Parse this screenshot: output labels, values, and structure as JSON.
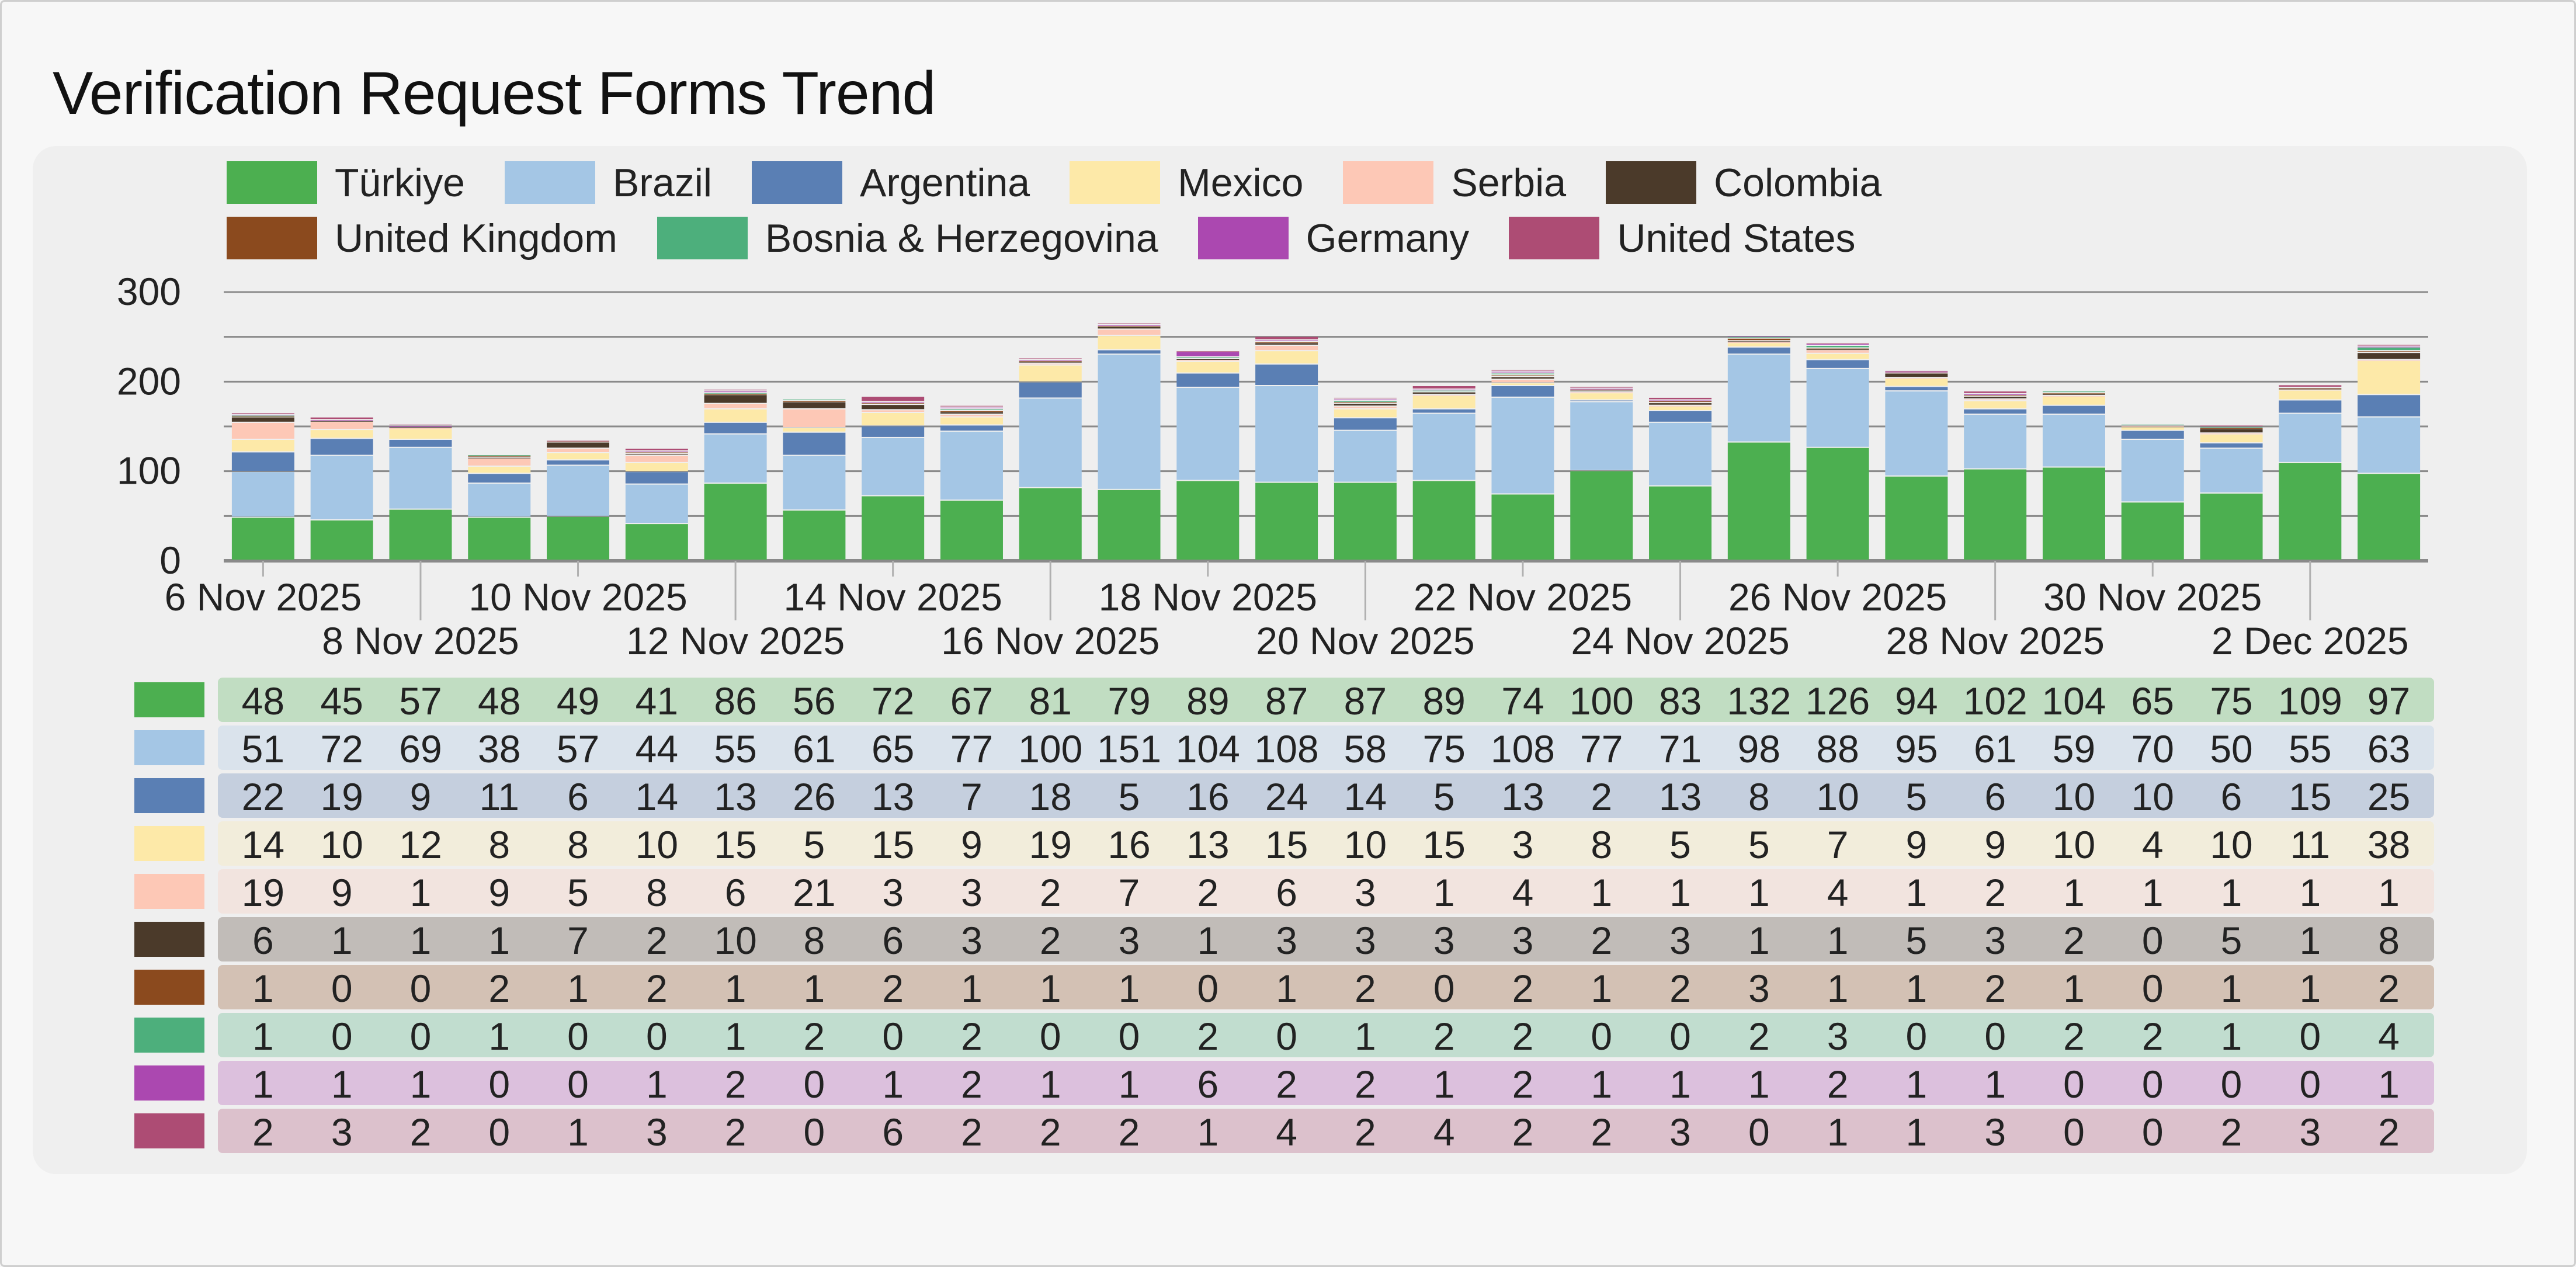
{
  "chart_data": {
    "type": "bar",
    "stacked": true,
    "title": "Verification Request Forms Trend",
    "xlabel": "",
    "ylabel": "",
    "ylim": [
      0,
      300
    ],
    "yticks": [
      0,
      100,
      200,
      300
    ],
    "grid": true,
    "legend_position": "top",
    "categories": [
      "6 Nov 2025",
      "7 Nov 2025",
      "8 Nov 2025",
      "9 Nov 2025",
      "10 Nov 2025",
      "11 Nov 2025",
      "12 Nov 2025",
      "13 Nov 2025",
      "14 Nov 2025",
      "15 Nov 2025",
      "16 Nov 2025",
      "17 Nov 2025",
      "18 Nov 2025",
      "19 Nov 2025",
      "20 Nov 2025",
      "21 Nov 2025",
      "22 Nov 2025",
      "23 Nov 2025",
      "24 Nov 2025",
      "25 Nov 2025",
      "26 Nov 2025",
      "27 Nov 2025",
      "28 Nov 2025",
      "29 Nov 2025",
      "30 Nov 2025",
      "1 Dec 2025",
      "2 Dec 2025",
      "3 Dec 2025"
    ],
    "xtick_labels": [
      "6 Nov 2025",
      "8 Nov 2025",
      "10 Nov 2025",
      "12 Nov 2025",
      "14 Nov 2025",
      "16 Nov 2025",
      "18 Nov 2025",
      "20 Nov 2025",
      "22 Nov 2025",
      "24 Nov 2025",
      "26 Nov 2025",
      "28 Nov 2025",
      "30 Nov 2025",
      "2 Dec 2025"
    ],
    "series": [
      {
        "name": "Türkiye",
        "color": "#4caf50",
        "values": [
          48,
          45,
          57,
          48,
          49,
          41,
          86,
          56,
          72,
          67,
          81,
          79,
          89,
          87,
          87,
          89,
          74,
          100,
          83,
          132,
          126,
          94,
          102,
          104,
          65,
          75,
          109,
          97
        ]
      },
      {
        "name": "Brazil",
        "color": "#a4c6e5",
        "values": [
          51,
          72,
          69,
          38,
          57,
          44,
          55,
          61,
          65,
          77,
          100,
          151,
          104,
          108,
          58,
          75,
          108,
          77,
          71,
          98,
          88,
          95,
          61,
          59,
          70,
          50,
          55,
          63
        ]
      },
      {
        "name": "Argentina",
        "color": "#5a7fb4",
        "values": [
          22,
          19,
          9,
          11,
          6,
          14,
          13,
          26,
          13,
          7,
          18,
          5,
          16,
          24,
          14,
          5,
          13,
          2,
          13,
          8,
          10,
          5,
          6,
          10,
          10,
          6,
          15,
          25
        ]
      },
      {
        "name": "Mexico",
        "color": "#fde9a8",
        "values": [
          14,
          10,
          12,
          8,
          8,
          10,
          15,
          5,
          15,
          9,
          19,
          16,
          13,
          15,
          10,
          15,
          3,
          8,
          5,
          5,
          7,
          9,
          9,
          10,
          4,
          10,
          11,
          38
        ]
      },
      {
        "name": "Serbia",
        "color": "#fdc8b6",
        "values": [
          19,
          9,
          1,
          9,
          5,
          8,
          6,
          21,
          3,
          3,
          2,
          7,
          2,
          6,
          3,
          1,
          4,
          1,
          1,
          1,
          4,
          1,
          2,
          1,
          1,
          1,
          1,
          1
        ]
      },
      {
        "name": "Colombia",
        "color": "#4b3a2a",
        "values": [
          6,
          1,
          1,
          1,
          7,
          2,
          10,
          8,
          6,
          3,
          2,
          3,
          1,
          3,
          3,
          3,
          3,
          2,
          3,
          1,
          1,
          5,
          3,
          2,
          0,
          5,
          1,
          8
        ]
      },
      {
        "name": "United Kingdom",
        "color": "#8b4a1e",
        "values": [
          1,
          0,
          0,
          2,
          1,
          2,
          1,
          1,
          2,
          1,
          1,
          1,
          0,
          1,
          2,
          0,
          2,
          1,
          2,
          3,
          1,
          1,
          2,
          1,
          0,
          1,
          1,
          2
        ]
      },
      {
        "name": "Bosnia & Herzegovina",
        "color": "#4daf7c",
        "values": [
          1,
          0,
          0,
          1,
          0,
          0,
          1,
          2,
          0,
          2,
          0,
          0,
          2,
          0,
          1,
          2,
          2,
          0,
          0,
          2,
          3,
          0,
          0,
          2,
          2,
          1,
          0,
          4
        ]
      },
      {
        "name": "Germany",
        "color": "#ab48b0",
        "values": [
          1,
          1,
          1,
          0,
          0,
          1,
          2,
          0,
          1,
          2,
          1,
          1,
          6,
          2,
          2,
          1,
          2,
          1,
          1,
          1,
          2,
          1,
          1,
          0,
          0,
          0,
          0,
          1
        ]
      },
      {
        "name": "United States",
        "color": "#ad4c74",
        "values": [
          2,
          3,
          2,
          0,
          1,
          3,
          2,
          0,
          6,
          2,
          2,
          2,
          1,
          4,
          2,
          4,
          2,
          2,
          3,
          0,
          1,
          1,
          3,
          0,
          0,
          2,
          3,
          2
        ]
      }
    ]
  }
}
